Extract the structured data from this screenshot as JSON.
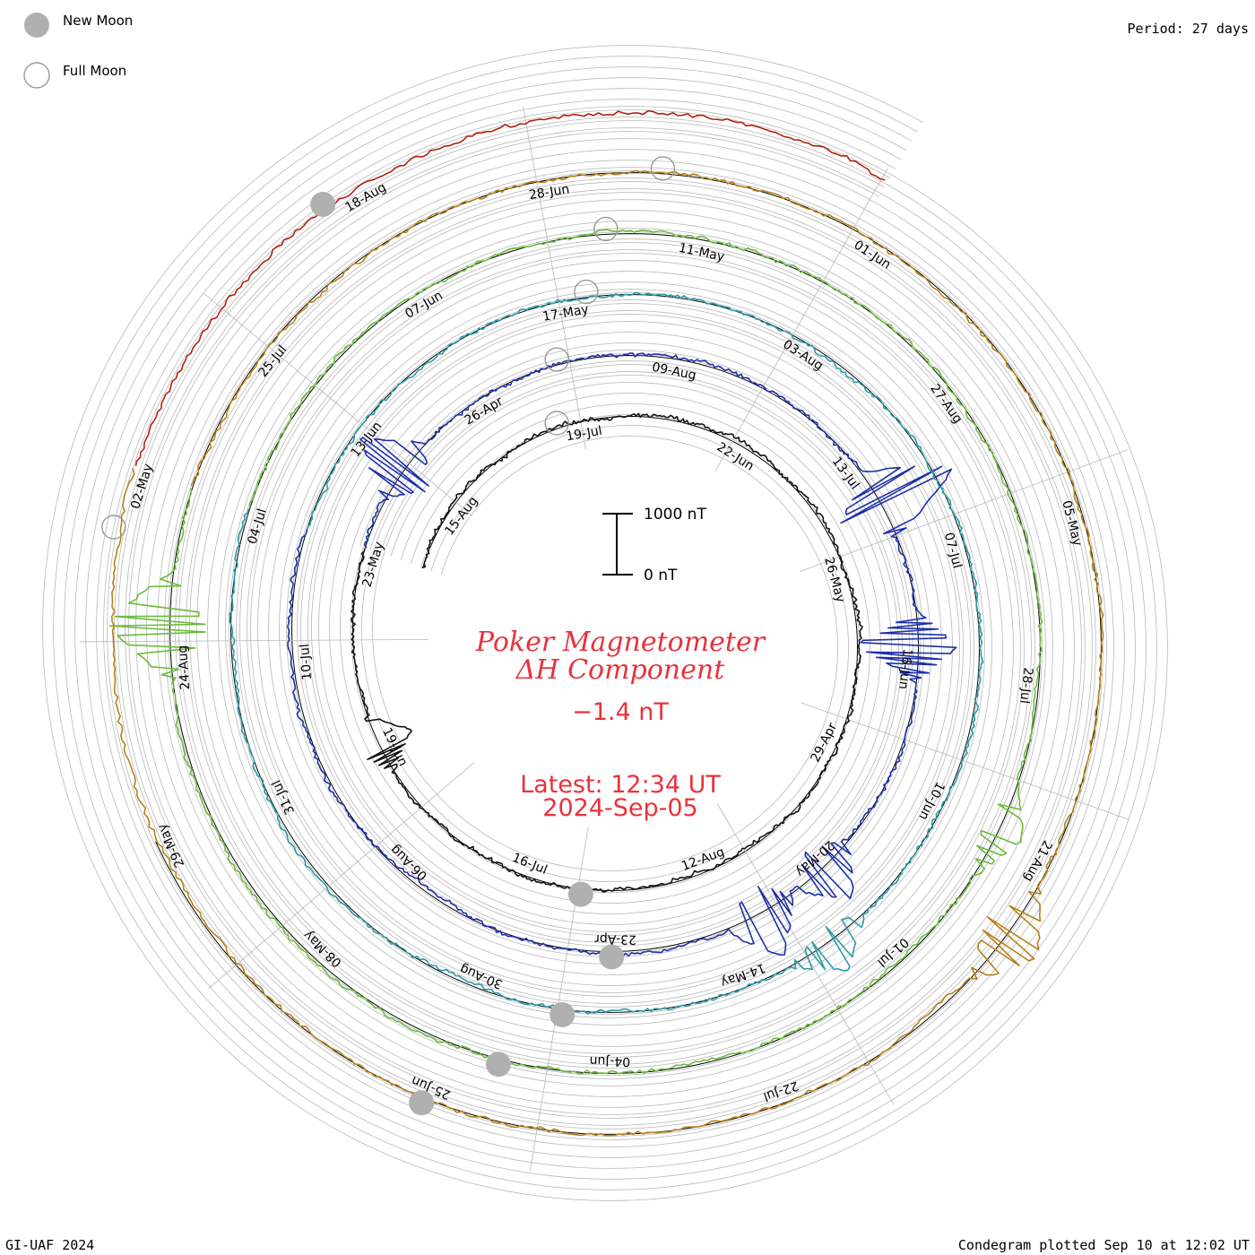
{
  "header": {
    "period_text": "Period: 27 days"
  },
  "footer": {
    "credit": "GI-UAF 2024",
    "plotted_text": "Condegram plotted Sep 10 at 12:02 UT"
  },
  "legend": {
    "new_moon": "New Moon",
    "full_moon": "Full Moon"
  },
  "center": {
    "title_line1": "Poker Magnetometer",
    "title_line2": "ΔH Component",
    "value": "−1.4 nT",
    "latest_label": "Latest: 12:34 UT",
    "latest_date": "2024-Sep-05"
  },
  "scale": {
    "top_label": "1000 nT",
    "bottom_label": "0 nT"
  },
  "colors": {
    "title": "#e8323c",
    "grid": "#b8b8b8",
    "moon_fill": "#b0b0b0",
    "series": [
      "#141414",
      "#20207a",
      "#1f2fa8",
      "#2f65c2",
      "#2a9ba8",
      "#2cae7a",
      "#6cbb3c",
      "#a6ad16",
      "#b8801a",
      "#c04a12",
      "#b81e10"
    ]
  },
  "date_labels": [
    "15-Aug",
    "19-Jul",
    "22-Jun",
    "26-May",
    "29-Apr",
    "12-Aug",
    "16-Jul",
    "19-Jun",
    "23-May",
    "26-Apr",
    "09-Aug",
    "13-Jul",
    "16-Jun",
    "20-May",
    "23-Apr",
    "06-Aug",
    "10-Jul",
    "13-Jun",
    "17-May",
    "03-Aug",
    "07-Jul",
    "10-Jun",
    "14-May",
    "30-Aug",
    "31-Jul",
    "04-Jul",
    "07-Jun",
    "11-May",
    "27-Aug",
    "28-Jul",
    "01-Jul",
    "04-Jun",
    "08-May",
    "24-Aug",
    "25-Jul",
    "28-Jun",
    "01-Jun",
    "05-May",
    "21-Aug",
    "22-Jul",
    "25-Jun",
    "29-May",
    "02-May",
    "18-Aug"
  ],
  "chart_data": {
    "type": "line",
    "projection": "polar condegram (spiral time axis)",
    "period_days": 27,
    "component": "ΔH",
    "units": "nT",
    "scale_bar_nT": [
      0,
      1000
    ],
    "latest": "12:34 UT 2024-Sep-05",
    "latest_value_nT": -1.4,
    "moon_phases": {
      "new_moon_count": 6,
      "full_moon_count": 6
    },
    "disturbances": [
      {
        "date": "11-May",
        "amplitude_nT": 1500
      },
      {
        "date": "12-Aug",
        "amplitude_nT": 600
      },
      {
        "date": "17-May",
        "amplitude_nT": 450
      },
      {
        "date": "02-May",
        "amplitude_nT": 350
      },
      {
        "date": "10-Jun",
        "amplitude_nT": 200
      },
      {
        "date": "28-Jul",
        "amplitude_nT": 220
      }
    ]
  }
}
